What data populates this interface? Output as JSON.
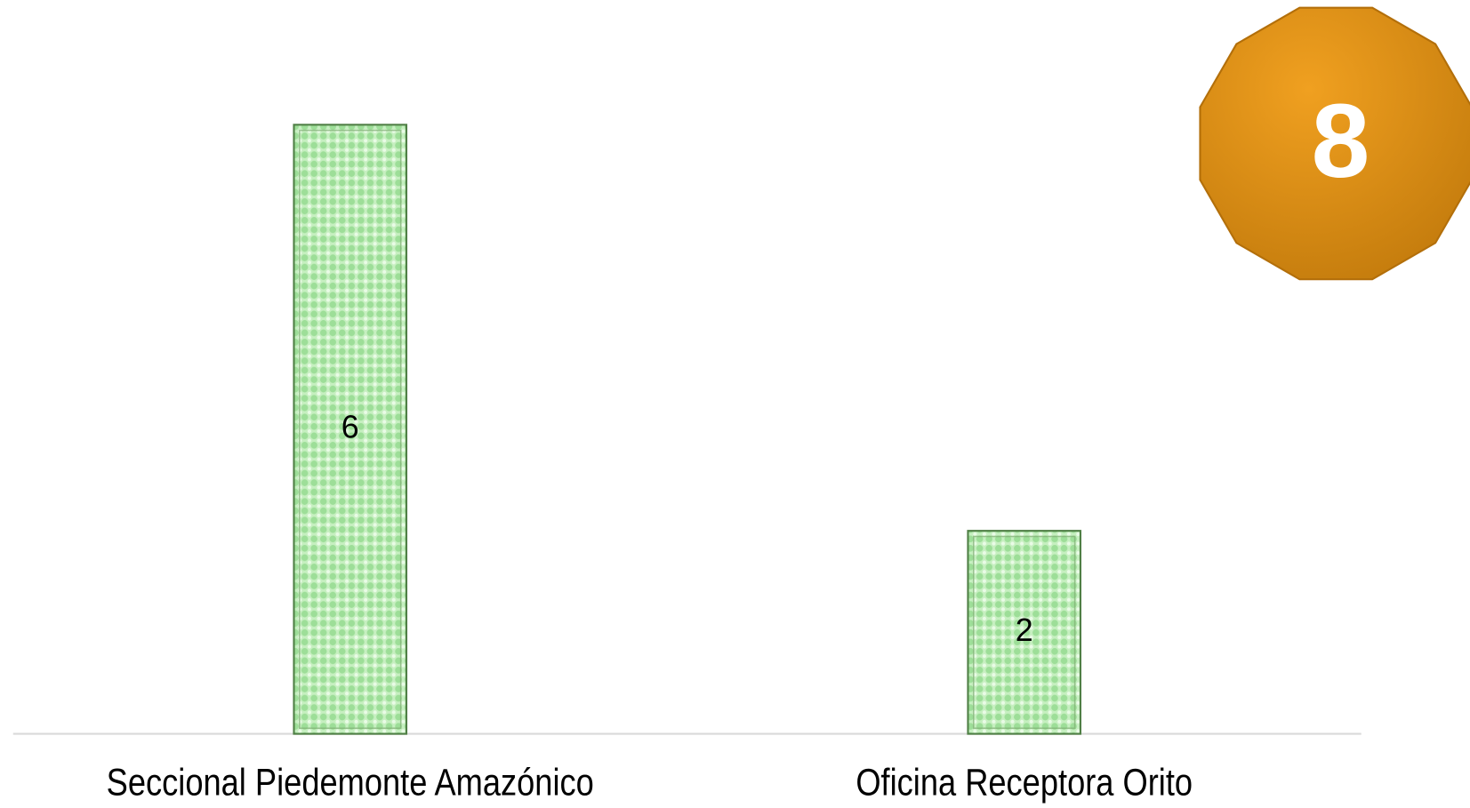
{
  "chart_data": {
    "type": "bar",
    "categories": [
      "Seccional Piedemonte Amazónico",
      "Oficina Receptora Orito"
    ],
    "values": [
      6,
      2
    ],
    "ylim": [
      0,
      6
    ],
    "color": "#c6efc0",
    "badge": 8
  }
}
